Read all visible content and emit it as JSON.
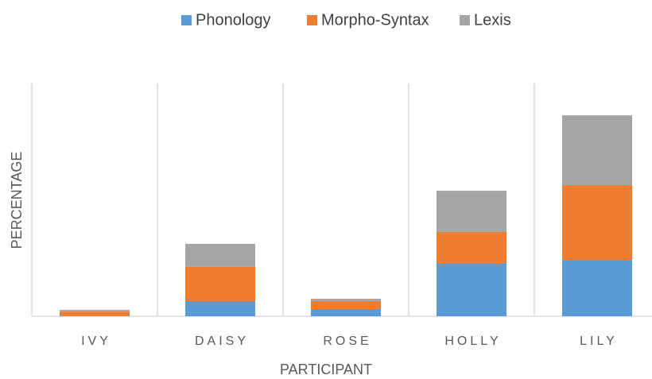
{
  "chart_data": {
    "type": "stacked_bar",
    "categories": [
      "IVY",
      "DAISY",
      "ROSE",
      "HOLLY",
      "LILY"
    ],
    "series": [
      {
        "name": "Phonology",
        "color": "#5b9bd5",
        "values": [
          0.3,
          6.5,
          3.1,
          22.9,
          24.2
        ]
      },
      {
        "name": "Morpho-Syntax",
        "color": "#ed7d31",
        "values": [
          1.7,
          14.7,
          3.4,
          13.3,
          32.1
        ]
      },
      {
        "name": "Lexis",
        "color": "#a5a5a5",
        "values": [
          0.7,
          9.9,
          1.0,
          17.7,
          30.0
        ]
      }
    ],
    "x_label": "PARTICIPANT",
    "y_label": "PERCENTAGE",
    "ylim": [
      0,
      100
    ],
    "legend": "top"
  }
}
